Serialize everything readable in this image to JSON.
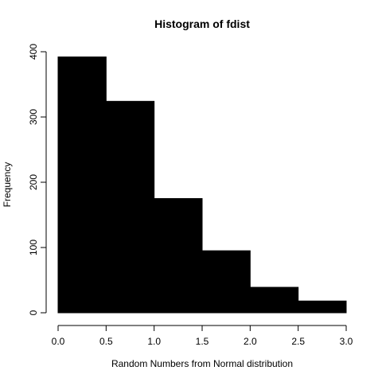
{
  "chart_data": {
    "type": "bar",
    "title": "Histogram of fdist",
    "xlabel": "Random Numbers from Normal distribution",
    "ylabel": "Frequency",
    "bins": [
      {
        "start": 0.0,
        "end": 0.5,
        "count": 392
      },
      {
        "start": 0.5,
        "end": 1.0,
        "count": 324
      },
      {
        "start": 1.0,
        "end": 1.5,
        "count": 175
      },
      {
        "start": 1.5,
        "end": 2.0,
        "count": 95
      },
      {
        "start": 2.0,
        "end": 2.5,
        "count": 39
      },
      {
        "start": 2.5,
        "end": 3.0,
        "count": 18
      }
    ],
    "xlim": [
      0,
      3
    ],
    "ylim": [
      0,
      400
    ],
    "x_ticks": [
      "0.0",
      "0.5",
      "1.0",
      "1.5",
      "2.0",
      "2.5",
      "3.0"
    ],
    "y_ticks": [
      "0",
      "100",
      "200",
      "300",
      "400"
    ],
    "bar_color": "#000000",
    "grid": false
  }
}
